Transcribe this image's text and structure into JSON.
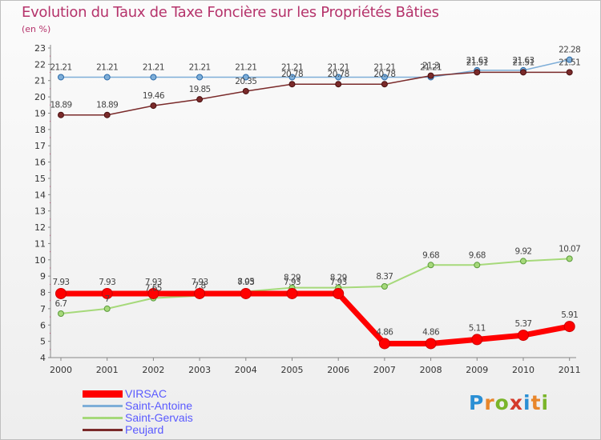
{
  "page": {
    "title": "Evolution du Taux de Taxe Foncière sur les Propriétés Bâties",
    "subtitle": "(en %)"
  },
  "logo": {
    "text": "Proxiti",
    "colors": [
      "#2a8fd4",
      "#e8862a",
      "#7ab52a",
      "#d43a2a",
      "#2a8fd4",
      "#e8862a",
      "#7ab52a"
    ]
  },
  "chart_data": {
    "type": "line",
    "title": "Evolution du Taux de Taxe Foncière sur les Propriétés Bâties",
    "ylabel": "(en %)",
    "xlabel": "",
    "categories": [
      "2000",
      "2001",
      "2002",
      "2003",
      "2004",
      "2005",
      "2006",
      "2007",
      "2008",
      "2009",
      "2010",
      "2011"
    ],
    "ylim": [
      4,
      23
    ],
    "yticks": [
      4,
      5,
      6,
      7,
      8,
      9,
      10,
      11,
      12,
      13,
      14,
      15,
      16,
      17,
      18,
      19,
      20,
      21,
      22,
      23
    ],
    "grid": false,
    "legend_position": "bottom-left",
    "series": [
      {
        "name": "VIRSAC",
        "color": "#ff0000",
        "values": [
          7.93,
          7.93,
          7.93,
          7.93,
          7.93,
          7.93,
          7.93,
          4.86,
          4.86,
          5.11,
          5.37,
          5.91
        ],
        "labels": [
          "7.93",
          "7.93",
          "7.93",
          "7.93",
          "7.93",
          "7.93",
          "7.93",
          "4.86",
          "4.86",
          "5.11",
          "5.37",
          "5.91"
        ]
      },
      {
        "name": "Saint-Antoine",
        "color": "#7eaed8",
        "values": [
          21.21,
          21.21,
          21.21,
          21.21,
          21.21,
          21.21,
          21.21,
          21.21,
          21.21,
          21.63,
          21.63,
          22.28
        ],
        "labels": [
          "21.21",
          "21.21",
          "21.21",
          "21.21",
          "21.21",
          "21.21",
          "21.21",
          "21.21",
          "21.21",
          "21.63",
          "21.63",
          "22.28"
        ]
      },
      {
        "name": "Saint-Gervais",
        "color": "#a6d97a",
        "values": [
          6.7,
          7,
          7.65,
          7.8,
          8.05,
          8.29,
          8.29,
          8.37,
          9.68,
          9.68,
          9.92,
          10.07
        ],
        "labels": [
          "6.7",
          "7",
          "7.65",
          "7.8",
          "8.05",
          "8.29",
          "8.29",
          "8.37",
          "9.68",
          "9.68",
          "9.92",
          "10.07"
        ]
      },
      {
        "name": "Peujard",
        "color": "#7a2a2a",
        "values": [
          18.89,
          18.89,
          19.46,
          19.85,
          20.35,
          20.78,
          20.78,
          20.78,
          21.3,
          21.51,
          21.51,
          21.51
        ],
        "labels": [
          "18.89",
          "18.89",
          "19.46",
          "19.85",
          "20.35",
          "20.78",
          "20.78",
          "20.78",
          "21.3",
          "21.51",
          "21.51",
          "21.51"
        ]
      }
    ]
  }
}
